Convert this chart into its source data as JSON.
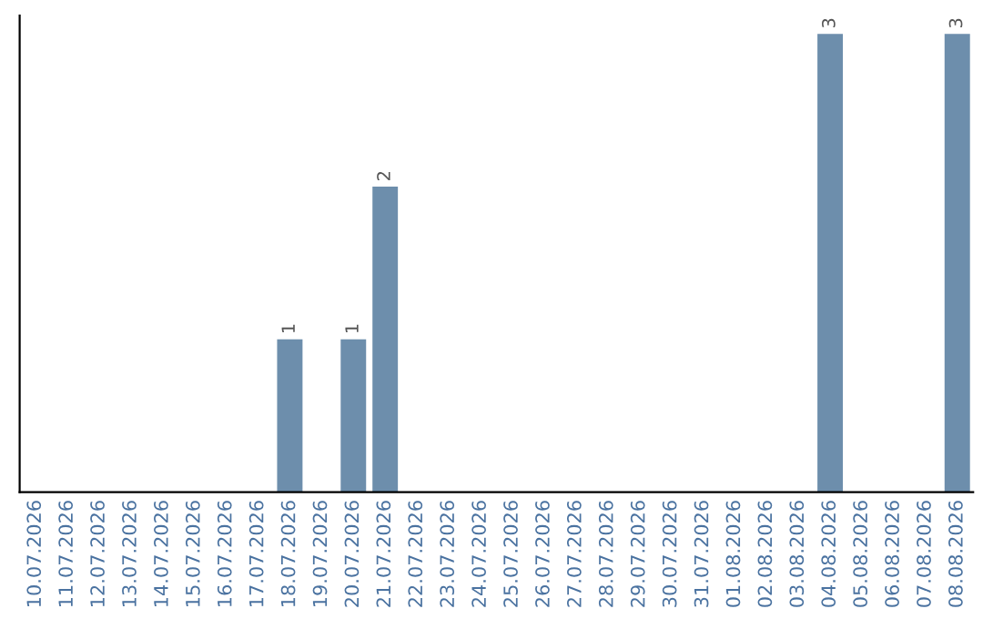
{
  "chart_data": {
    "type": "bar",
    "categories": [
      "10.07.2026",
      "11.07.2026",
      "12.07.2026",
      "13.07.2026",
      "14.07.2026",
      "15.07.2026",
      "16.07.2026",
      "17.07.2026",
      "18.07.2026",
      "19.07.2026",
      "20.07.2026",
      "21.07.2026",
      "22.07.2026",
      "23.07.2026",
      "24.07.2026",
      "25.07.2026",
      "26.07.2026",
      "27.07.2026",
      "28.07.2026",
      "29.07.2026",
      "30.07.2026",
      "31.07.2026",
      "01.08.2026",
      "02.08.2026",
      "03.08.2026",
      "04.08.2026",
      "05.08.2026",
      "06.08.2026",
      "07.08.2026",
      "08.08.2026"
    ],
    "values": [
      0,
      0,
      0,
      0,
      0,
      0,
      0,
      0,
      1,
      0,
      1,
      2,
      0,
      0,
      0,
      0,
      0,
      0,
      0,
      0,
      0,
      0,
      0,
      0,
      0,
      3,
      0,
      0,
      0,
      3
    ],
    "value_labels": [
      null,
      null,
      null,
      null,
      null,
      null,
      null,
      null,
      "1",
      null,
      "1",
      "2",
      null,
      null,
      null,
      null,
      null,
      null,
      null,
      null,
      null,
      null,
      null,
      null,
      null,
      "3",
      null,
      null,
      null,
      "3"
    ],
    "color": "#6d8eac",
    "tick_labels": "x",
    "grid": false
  }
}
